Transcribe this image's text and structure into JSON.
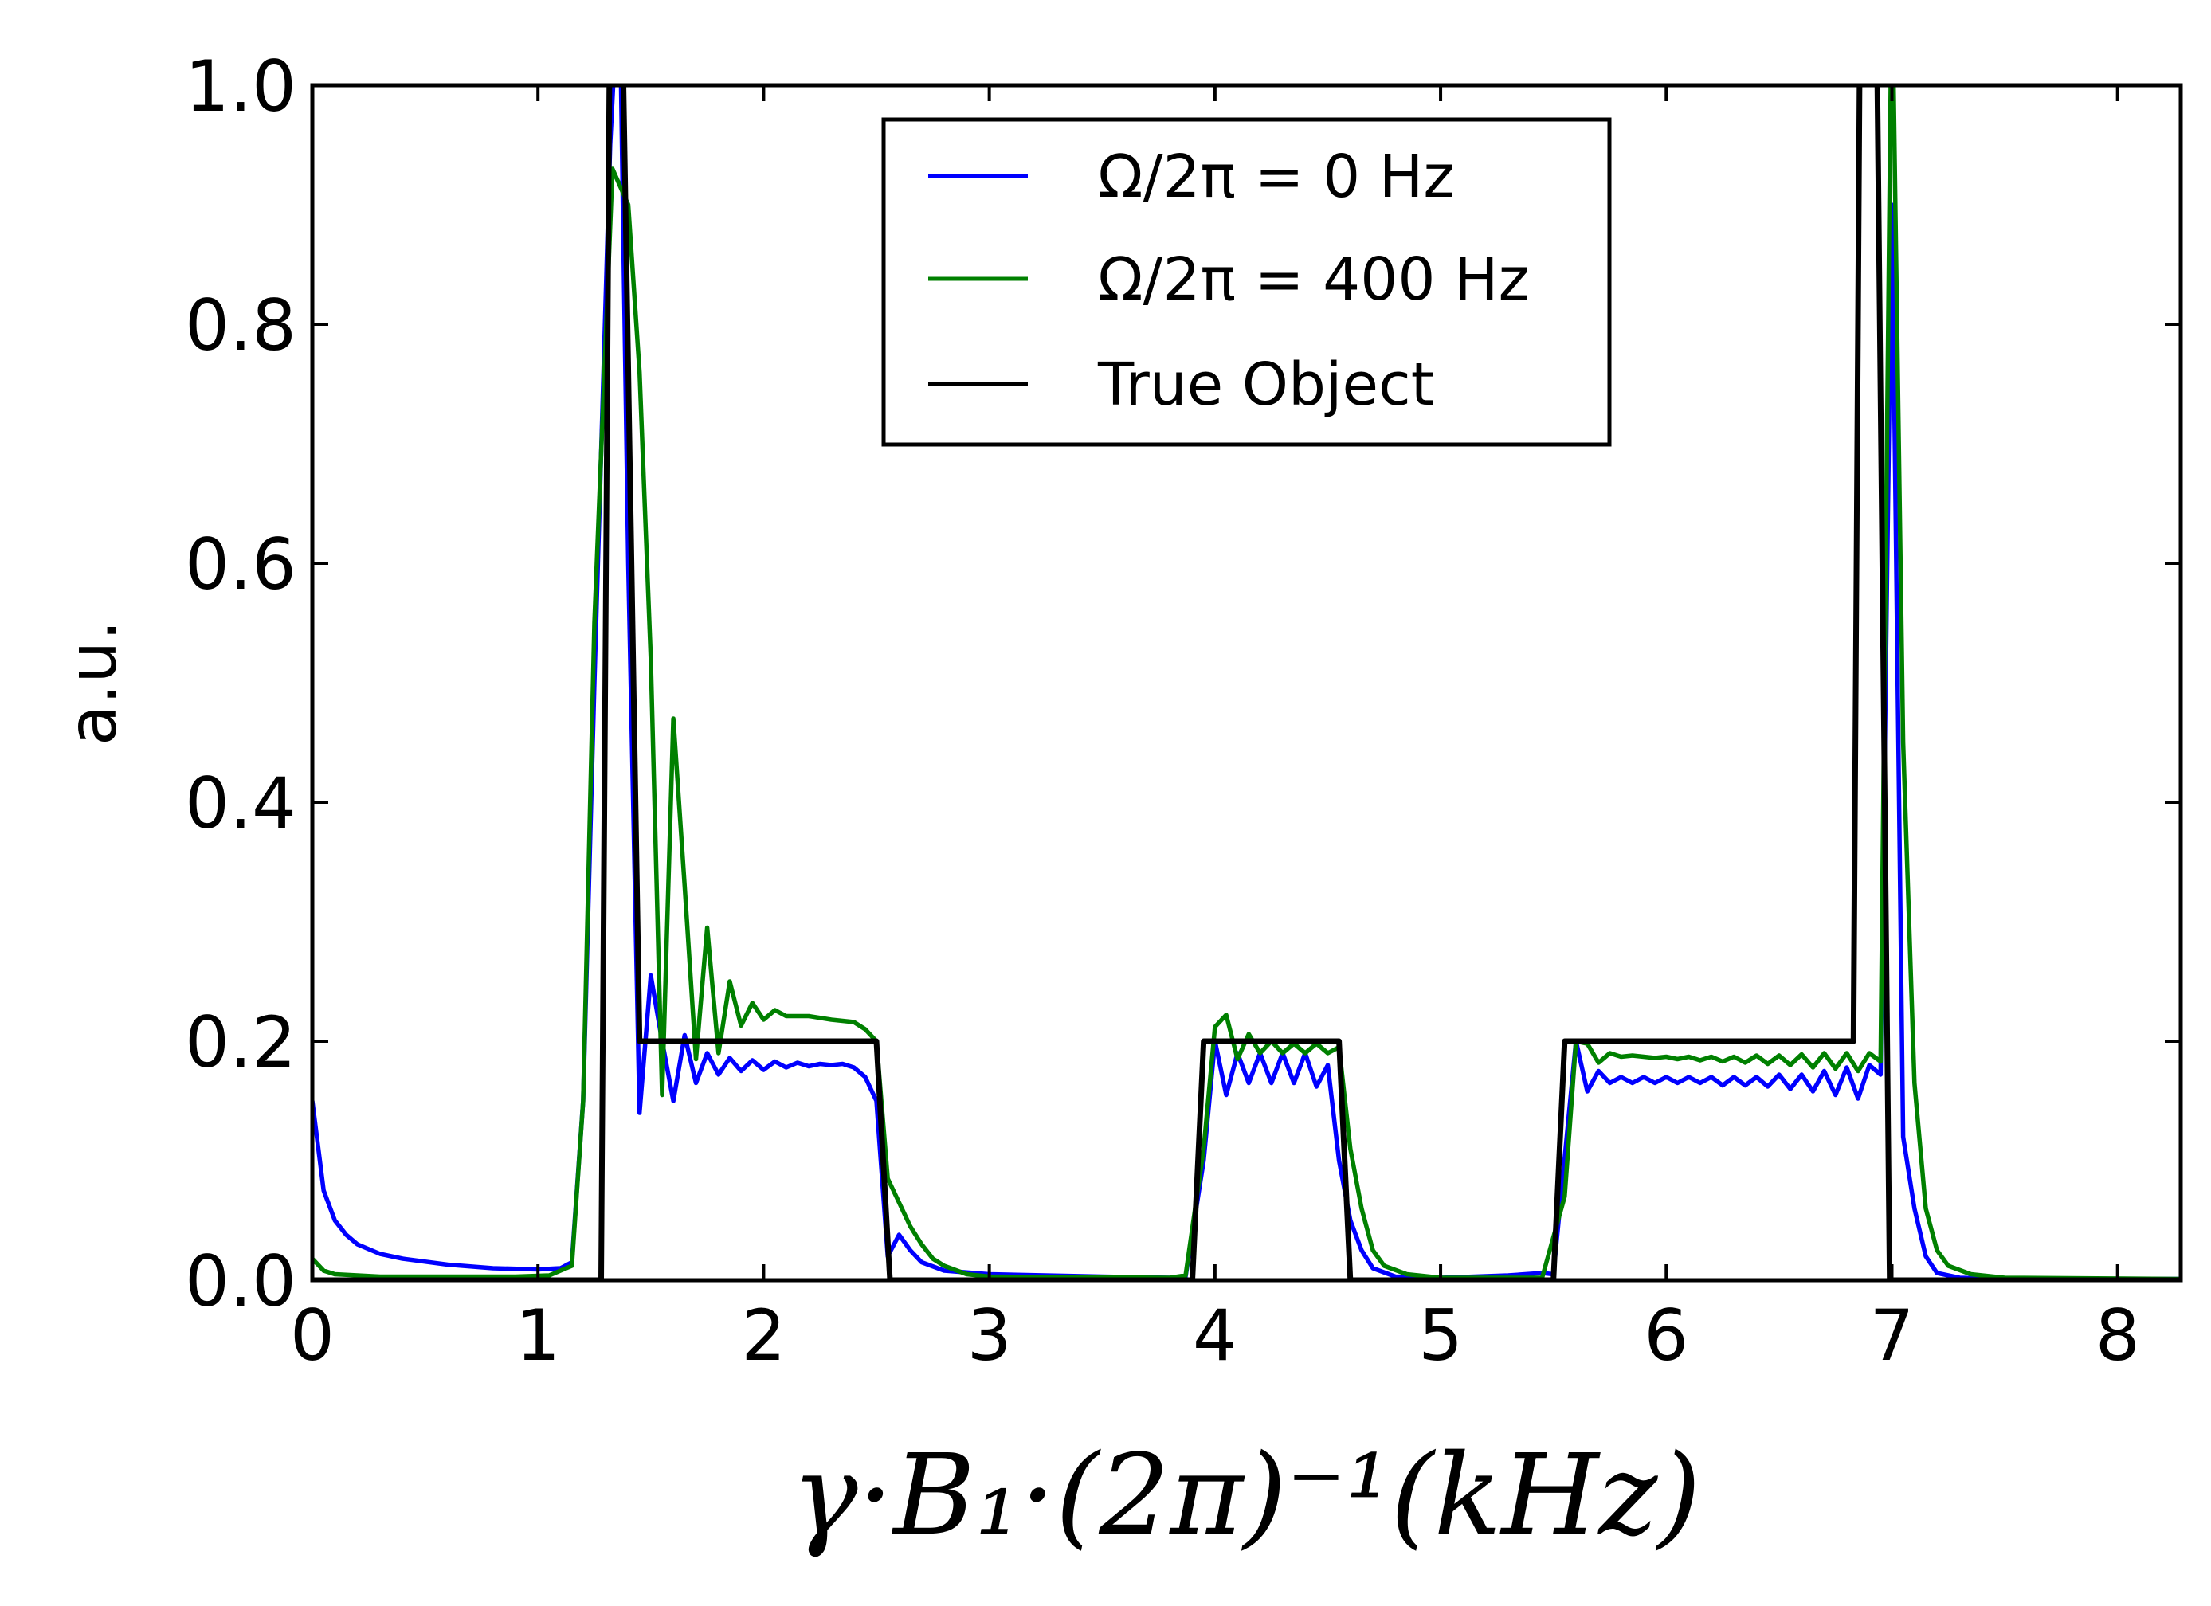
{
  "chart_data": {
    "type": "line",
    "title": "",
    "xlabel": "γ·B₁·(2π)⁻¹(kHz)",
    "ylabel": "a.u.",
    "xlim": [
      0,
      8.28
    ],
    "ylim": [
      0,
      1.0
    ],
    "xticks": [
      "0",
      "1",
      "2",
      "3",
      "4",
      "5",
      "6",
      "7",
      "8"
    ],
    "yticks": [
      "0.0",
      "0.2",
      "0.4",
      "0.6",
      "0.8",
      "1.0"
    ],
    "grid": false,
    "legend_position": "top-center",
    "series": [
      {
        "name": "Ω/2π = 0 Hz",
        "color": "#0000ff",
        "x": [
          0,
          0.05,
          0.1,
          0.15,
          0.2,
          0.3,
          0.4,
          0.6,
          0.8,
          1.0,
          1.1,
          1.15,
          1.2,
          1.25,
          1.32,
          1.36,
          1.4,
          1.45,
          1.5,
          1.55,
          1.6,
          1.65,
          1.7,
          1.75,
          1.8,
          1.85,
          1.9,
          1.95,
          2.0,
          2.05,
          2.1,
          2.15,
          2.2,
          2.25,
          2.3,
          2.35,
          2.4,
          2.45,
          2.5,
          2.55,
          2.6,
          2.65,
          2.7,
          2.8,
          3.0,
          3.5,
          3.8,
          3.87,
          3.95,
          4.0,
          4.05,
          4.1,
          4.15,
          4.2,
          4.25,
          4.3,
          4.35,
          4.4,
          4.45,
          4.5,
          4.55,
          4.6,
          4.65,
          4.7,
          4.8,
          5.0,
          5.3,
          5.45,
          5.5,
          5.6,
          5.65,
          5.7,
          5.75,
          5.8,
          5.85,
          5.9,
          5.95,
          6.0,
          6.05,
          6.1,
          6.15,
          6.2,
          6.25,
          6.3,
          6.35,
          6.4,
          6.45,
          6.5,
          6.55,
          6.6,
          6.65,
          6.7,
          6.75,
          6.8,
          6.85,
          6.9,
          6.95,
          7.0,
          7.05,
          7.1,
          7.15,
          7.2,
          7.3,
          7.5,
          8.28
        ],
        "y": [
          0.15,
          0.075,
          0.05,
          0.038,
          0.03,
          0.022,
          0.018,
          0.013,
          0.01,
          0.009,
          0.01,
          0.015,
          0.15,
          0.5,
          0.95,
          1.1,
          0.6,
          0.14,
          0.255,
          0.2,
          0.15,
          0.205,
          0.165,
          0.19,
          0.172,
          0.186,
          0.175,
          0.184,
          0.176,
          0.183,
          0.178,
          0.182,
          0.179,
          0.181,
          0.18,
          0.181,
          0.178,
          0.17,
          0.15,
          0.02,
          0.038,
          0.025,
          0.015,
          0.008,
          0.005,
          0.003,
          0.002,
          0.003,
          0.1,
          0.2,
          0.155,
          0.19,
          0.165,
          0.19,
          0.165,
          0.19,
          0.165,
          0.19,
          0.162,
          0.18,
          0.1,
          0.05,
          0.025,
          0.01,
          0.003,
          0.002,
          0.004,
          0.006,
          0.005,
          0.2,
          0.158,
          0.175,
          0.165,
          0.17,
          0.165,
          0.17,
          0.165,
          0.17,
          0.165,
          0.17,
          0.165,
          0.17,
          0.163,
          0.17,
          0.163,
          0.17,
          0.162,
          0.172,
          0.16,
          0.172,
          0.158,
          0.175,
          0.155,
          0.178,
          0.152,
          0.18,
          0.172,
          0.9,
          0.12,
          0.06,
          0.02,
          0.006,
          0.002,
          0.001,
          0.001
        ]
      },
      {
        "name": "Ω/2π = 400 Hz",
        "color": "#008000",
        "x": [
          0,
          0.05,
          0.1,
          0.3,
          0.9,
          1.05,
          1.1,
          1.15,
          1.2,
          1.25,
          1.33,
          1.4,
          1.45,
          1.5,
          1.55,
          1.6,
          1.65,
          1.7,
          1.75,
          1.8,
          1.85,
          1.9,
          1.95,
          2.0,
          2.05,
          2.1,
          2.2,
          2.3,
          2.4,
          2.45,
          2.5,
          2.55,
          2.6,
          2.65,
          2.7,
          2.75,
          2.8,
          2.9,
          3.0,
          3.8,
          3.87,
          3.95,
          4.0,
          4.05,
          4.1,
          4.15,
          4.2,
          4.25,
          4.3,
          4.35,
          4.4,
          4.45,
          4.5,
          4.55,
          4.6,
          4.65,
          4.7,
          4.75,
          4.85,
          5.0,
          5.45,
          5.55,
          5.6,
          5.65,
          5.7,
          5.75,
          5.8,
          5.85,
          5.9,
          5.95,
          6.0,
          6.05,
          6.1,
          6.15,
          6.2,
          6.25,
          6.3,
          6.35,
          6.4,
          6.45,
          6.5,
          6.55,
          6.6,
          6.65,
          6.7,
          6.75,
          6.8,
          6.85,
          6.9,
          6.95,
          7.0,
          7.05,
          7.1,
          7.15,
          7.2,
          7.25,
          7.35,
          7.5,
          8.28
        ],
        "y": [
          0.018,
          0.008,
          0.005,
          0.003,
          0.003,
          0.004,
          0.008,
          0.012,
          0.15,
          0.55,
          0.93,
          0.9,
          0.76,
          0.52,
          0.155,
          0.47,
          0.33,
          0.185,
          0.295,
          0.19,
          0.25,
          0.213,
          0.232,
          0.218,
          0.226,
          0.221,
          0.221,
          0.218,
          0.216,
          0.21,
          0.2,
          0.085,
          0.065,
          0.045,
          0.03,
          0.018,
          0.012,
          0.005,
          0.003,
          0.002,
          0.004,
          0.11,
          0.212,
          0.222,
          0.185,
          0.206,
          0.19,
          0.2,
          0.19,
          0.198,
          0.19,
          0.198,
          0.19,
          0.195,
          0.11,
          0.06,
          0.025,
          0.012,
          0.005,
          0.002,
          0.002,
          0.07,
          0.2,
          0.198,
          0.182,
          0.19,
          0.187,
          0.188,
          0.187,
          0.186,
          0.187,
          0.185,
          0.187,
          0.184,
          0.187,
          0.183,
          0.187,
          0.182,
          0.188,
          0.181,
          0.188,
          0.18,
          0.189,
          0.178,
          0.19,
          0.177,
          0.19,
          0.175,
          0.19,
          0.183,
          1.1,
          0.45,
          0.165,
          0.06,
          0.025,
          0.012,
          0.005,
          0.002,
          0.001
        ]
      },
      {
        "name": "True Object",
        "color": "#000000",
        "x": [
          0,
          1.28,
          1.32,
          1.37,
          1.45,
          2.5,
          2.56,
          3.9,
          3.95,
          4.55,
          4.6,
          5.5,
          5.55,
          6.83,
          6.86,
          6.93,
          6.99,
          8.28
        ],
        "y": [
          0,
          0,
          1.1,
          1.1,
          0.2,
          0.2,
          0,
          0,
          0.2,
          0.2,
          0,
          0,
          0.2,
          0.2,
          1.1,
          1.1,
          0,
          0
        ]
      }
    ]
  }
}
